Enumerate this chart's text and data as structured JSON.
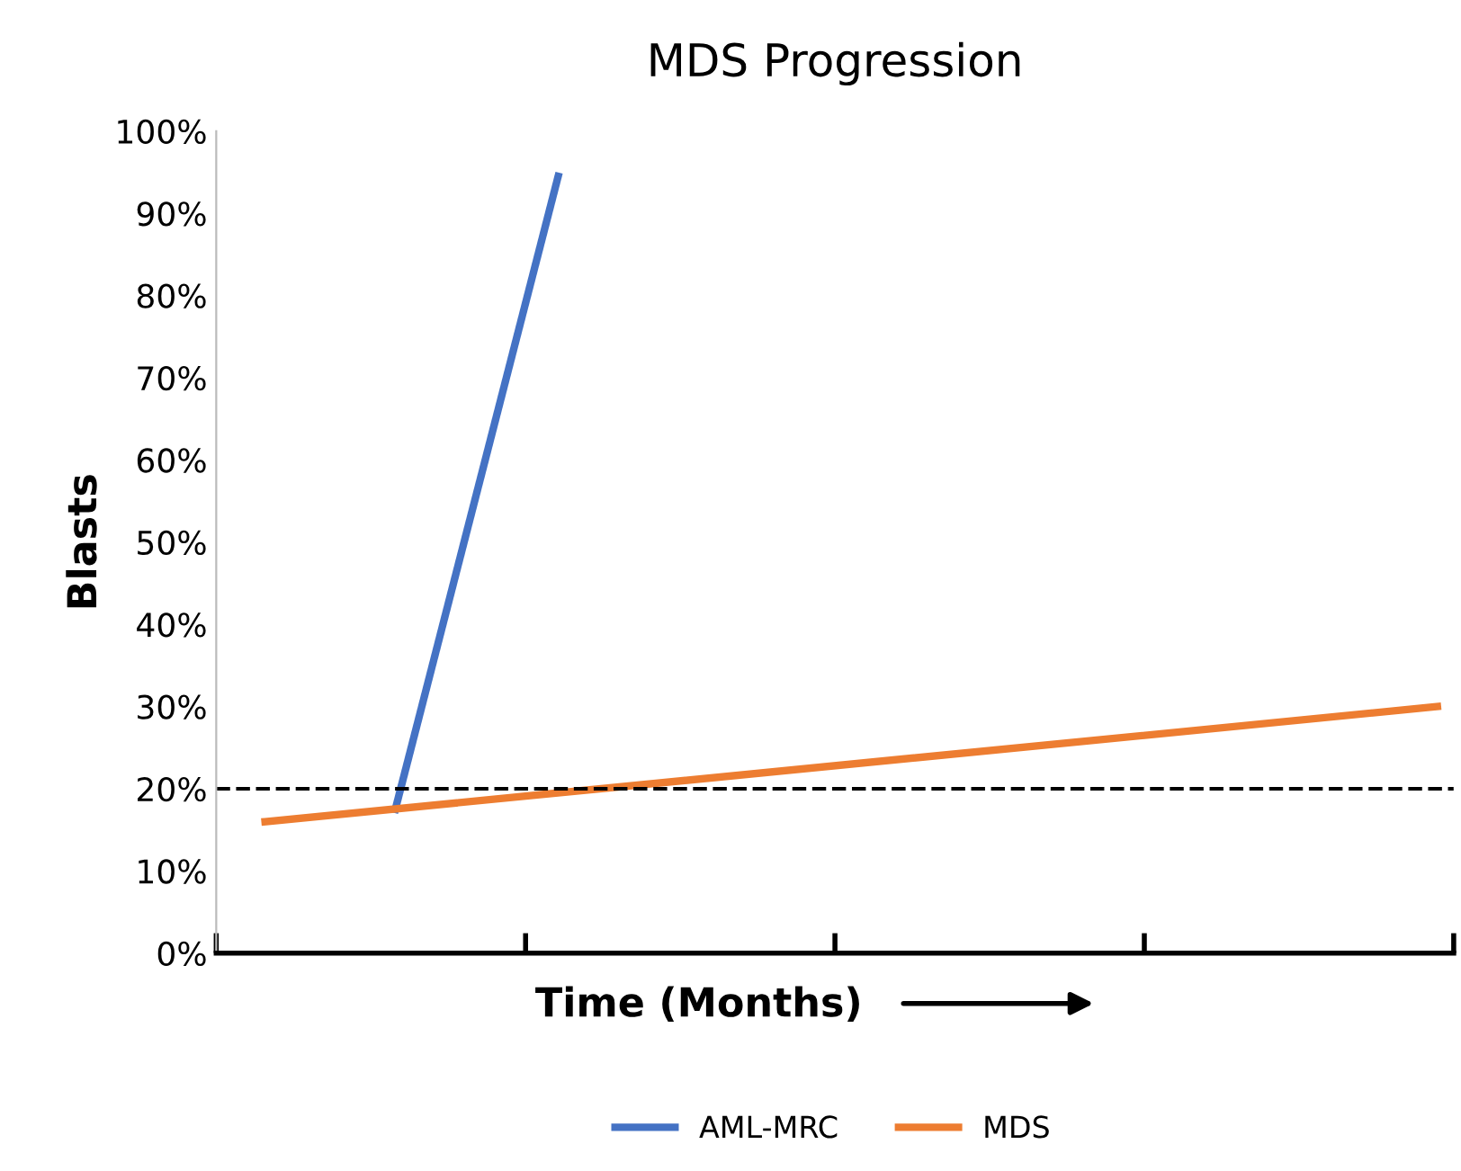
{
  "chart_data": {
    "type": "line",
    "title": "MDS Progression",
    "xlabel": "Time (Months)",
    "ylabel": "Blasts",
    "categories": [
      null,
      null,
      null,
      null,
      null,
      null,
      null,
      null,
      null,
      null,
      null,
      null,
      null,
      null,
      null,
      null,
      null,
      null,
      null,
      null,
      null,
      null,
      null,
      null,
      null,
      null,
      null,
      null,
      null,
      null,
      null,
      null,
      null,
      null,
      null,
      null,
      null,
      null
    ],
    "series": [
      {
        "name": "AML-MRC",
        "color": "#4472c4",
        "values": [
          null,
          null,
          null,
          null,
          null,
          17.5,
          null,
          null,
          null,
          null,
          94.5,
          null,
          null,
          null,
          null,
          null,
          null,
          null,
          null,
          null,
          null,
          null,
          null,
          null,
          null,
          null,
          null,
          null,
          null,
          null,
          null,
          null,
          null,
          null,
          null,
          null,
          null,
          null
        ]
      },
      {
        "name": "MDS",
        "color": "#ed7d31",
        "values": [
          null,
          16,
          null,
          null,
          null,
          null,
          null,
          null,
          null,
          null,
          null,
          null,
          null,
          null,
          null,
          null,
          null,
          null,
          null,
          null,
          null,
          null,
          null,
          null,
          null,
          null,
          null,
          null,
          null,
          null,
          null,
          null,
          null,
          null,
          null,
          null,
          null,
          30
        ]
      }
    ],
    "ylim": [
      0,
      100
    ],
    "yticks": [
      {
        "value": 0,
        "label": "0%"
      },
      {
        "value": 10,
        "label": "10%"
      },
      {
        "value": 20,
        "label": "20%"
      },
      {
        "value": 30,
        "label": "30%"
      },
      {
        "value": 40,
        "label": "40%"
      },
      {
        "value": 50,
        "label": "50%"
      },
      {
        "value": 60,
        "label": "60%"
      },
      {
        "value": 70,
        "label": "70%"
      },
      {
        "value": 80,
        "label": "80%"
      },
      {
        "value": 90,
        "label": "90%"
      },
      {
        "value": 100,
        "label": "100%"
      }
    ],
    "ref_lines": [
      {
        "axis": "y",
        "value": 20,
        "color": "#000000",
        "line_style": "dashed"
      }
    ],
    "grid": false,
    "legend": "bottom",
    "marker": "none",
    "line_style": "solid"
  }
}
